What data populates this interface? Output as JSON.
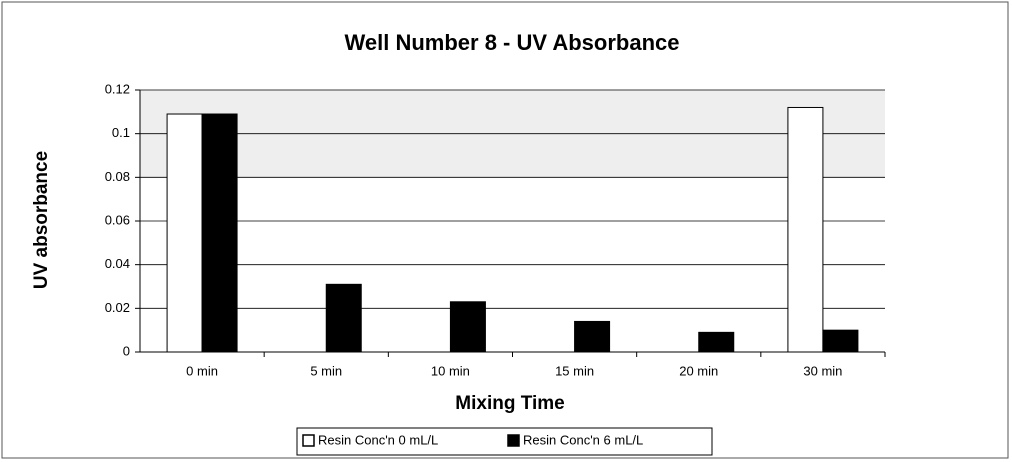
{
  "chart_data": {
    "type": "bar",
    "title": "Well Number 8 - UV Absorbance",
    "x_label": "Mixing Time",
    "y_label": "UV absorbance",
    "categories": [
      "0 min",
      "5 min",
      "10 min",
      "15 min",
      "20 min",
      "30 min"
    ],
    "series": [
      {
        "name": "Resin Conc'n 0 mL/L",
        "color": "#ffffff",
        "values": [
          0.109,
          null,
          null,
          null,
          null,
          0.112
        ]
      },
      {
        "name": "Resin Conc'n 6 mL/L",
        "color": "#000000",
        "values": [
          0.109,
          0.031,
          0.023,
          0.014,
          0.009,
          0.01
        ]
      }
    ],
    "ylim": [
      0,
      0.12
    ],
    "yticks": [
      0,
      0.02,
      0.04,
      0.06,
      0.08,
      0.1,
      0.12
    ],
    "grid": true,
    "legend": "bottom"
  }
}
